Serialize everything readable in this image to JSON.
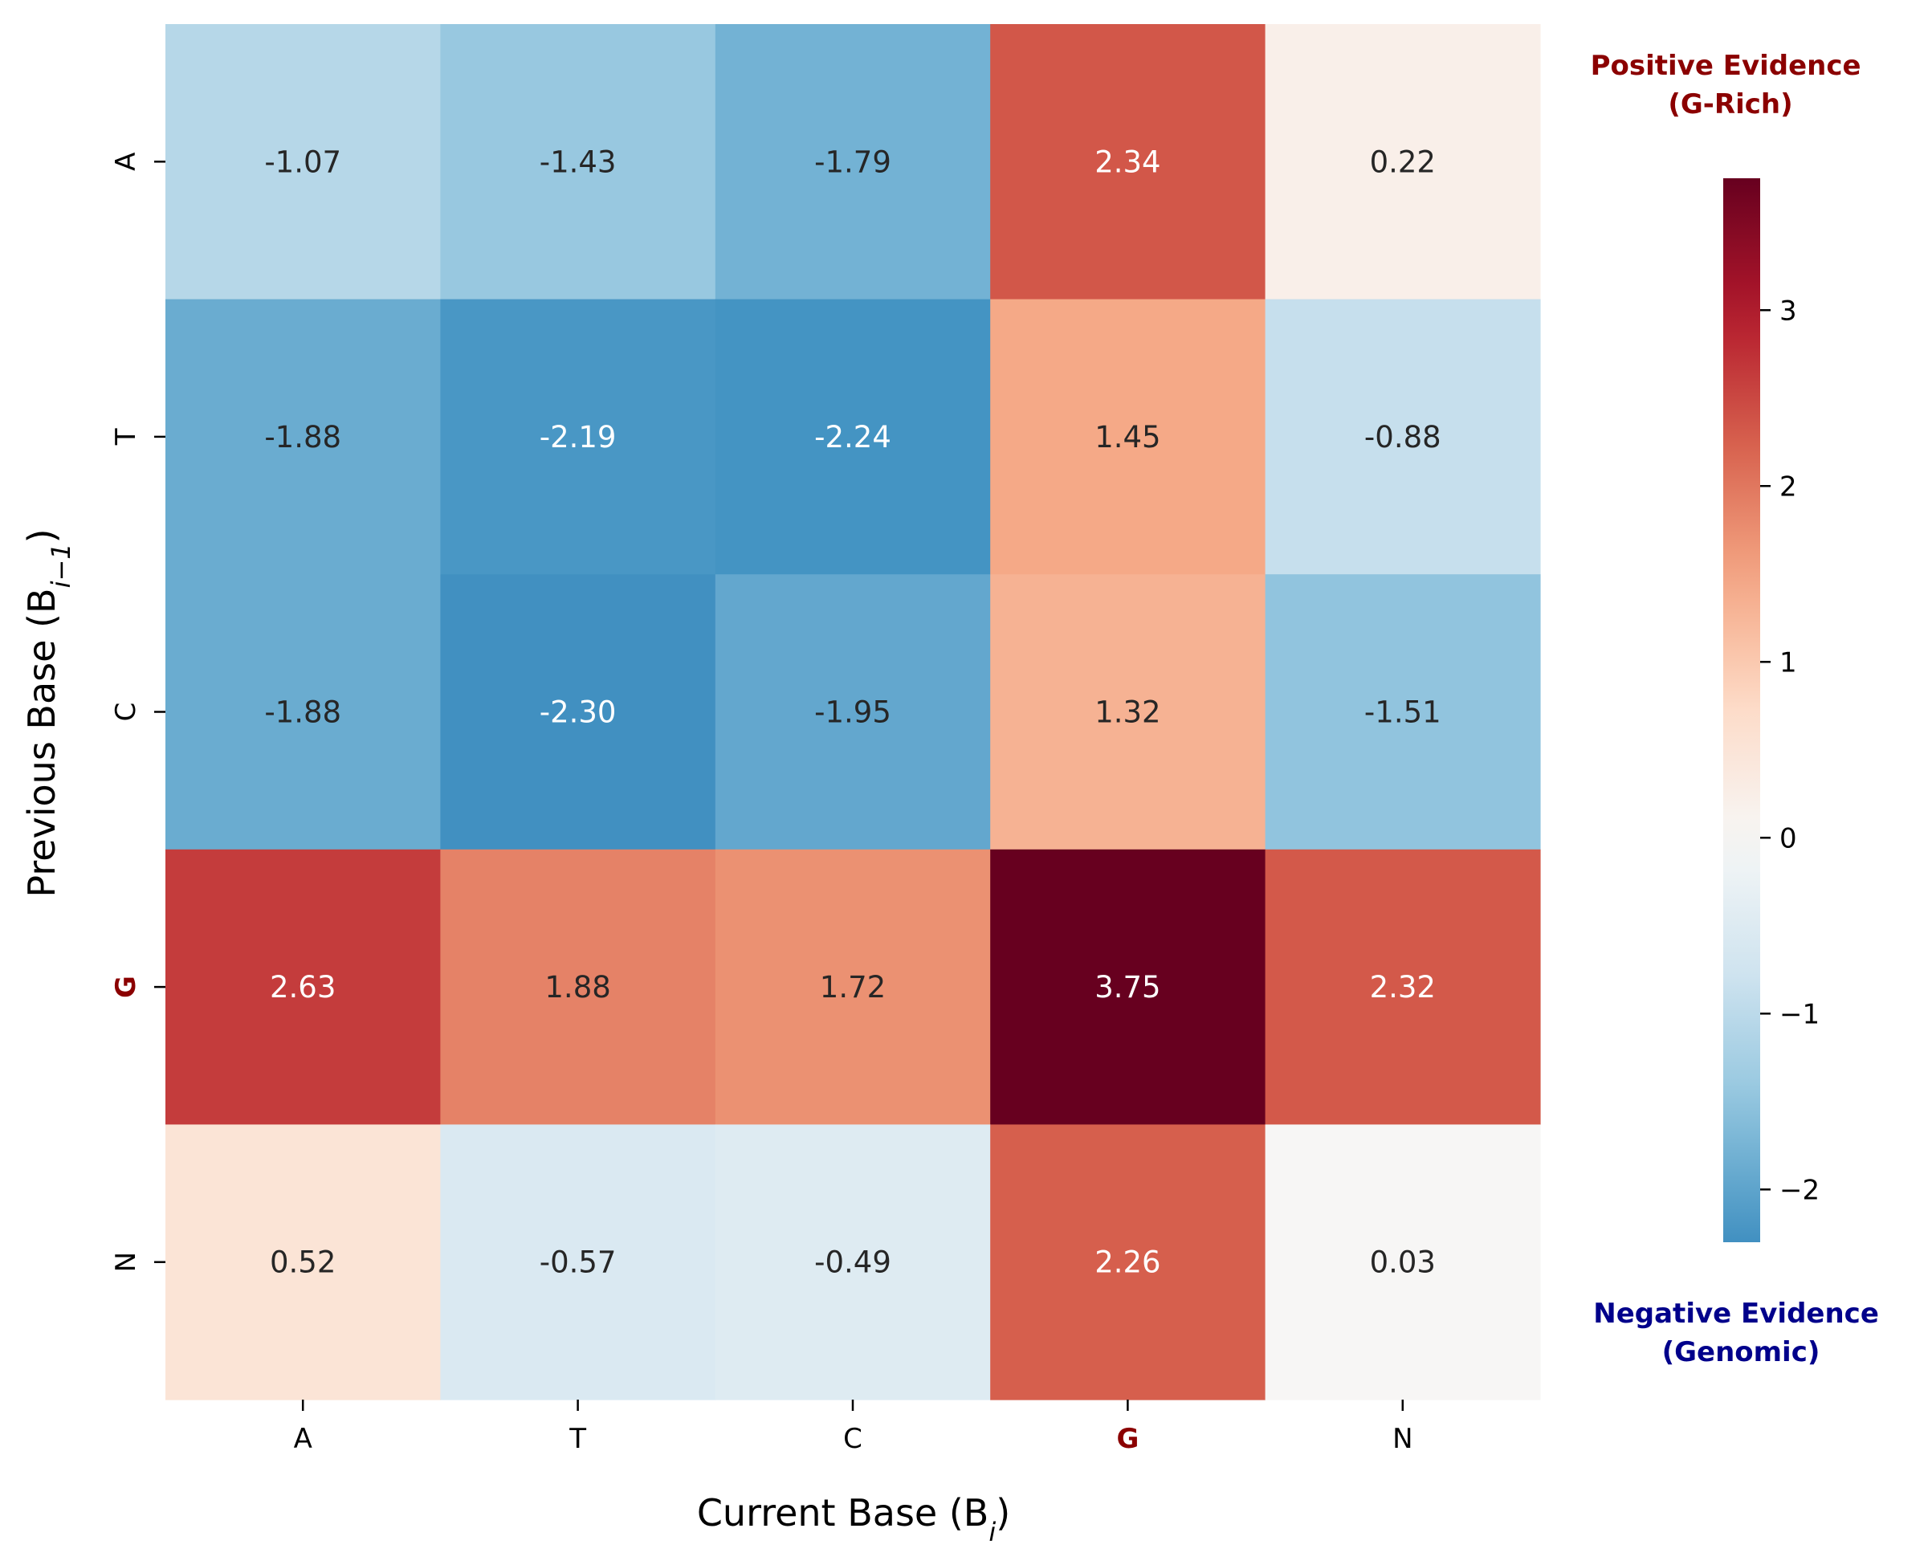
{
  "chart_data": {
    "type": "heatmap",
    "xlabel": "Current Base (B",
    "xlabel_sub": "i",
    "xlabel_close": ")",
    "ylabel": "Previous Base (B",
    "ylabel_sub": "i−1",
    "ylabel_close": ")",
    "x_categories": [
      "A",
      "T",
      "C",
      "G",
      "N"
    ],
    "y_categories": [
      "A",
      "T",
      "C",
      "G",
      "N"
    ],
    "highlight_category": "G",
    "values": [
      [
        -1.07,
        -1.43,
        -1.79,
        2.34,
        0.22
      ],
      [
        -1.88,
        -2.19,
        -2.24,
        1.45,
        -0.88
      ],
      [
        -1.88,
        -2.3,
        -1.95,
        1.32,
        -1.51
      ],
      [
        2.63,
        1.88,
        1.72,
        3.75,
        2.32
      ],
      [
        0.52,
        -0.57,
        -0.49,
        2.26,
        0.03
      ]
    ],
    "value_labels": [
      [
        "-1.07",
        "-1.43",
        "-1.79",
        "2.34",
        "0.22"
      ],
      [
        "-1.88",
        "-2.19",
        "-2.24",
        "1.45",
        "-0.88"
      ],
      [
        "-1.88",
        "-2.30",
        "-1.95",
        "1.32",
        "-1.51"
      ],
      [
        "2.63",
        "1.88",
        "1.72",
        "3.75",
        "2.32"
      ],
      [
        "0.52",
        "-0.57",
        "-0.49",
        "2.26",
        "0.03"
      ]
    ],
    "colormap": "RdBu_r",
    "color_range": [
      -3.75,
      3.75
    ],
    "colorbar": {
      "range": [
        -2.3,
        3.75
      ],
      "ticks": [
        -2,
        -1,
        0,
        1,
        2,
        3
      ],
      "tick_labels": [
        "−2",
        "−1",
        "0",
        "1",
        "2",
        "3"
      ],
      "top_label_line1": "Positive Evidence",
      "top_label_line2": "(G-Rich)",
      "bottom_label_line1": "Negative Evidence",
      "bottom_label_line2": "(Genomic)"
    },
    "colors": {
      "highlight": "#8b0000",
      "positive_label": "#8b0000",
      "negative_label": "#00008b",
      "text_dark": "#262626",
      "text_light": "#ffffff"
    }
  }
}
